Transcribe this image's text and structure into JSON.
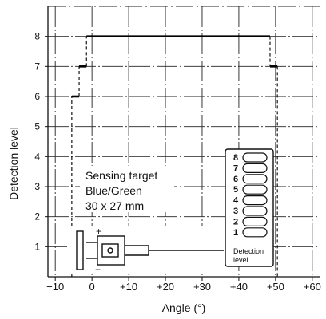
{
  "chart_data": {
    "type": "line",
    "xlabel": "Angle (°)",
    "ylabel": "Detection level",
    "xlim": [
      -12,
      62
    ],
    "ylim": [
      0,
      9
    ],
    "x_ticks": [
      -10,
      0,
      10,
      20,
      30,
      40,
      50,
      60
    ],
    "x_tick_labels": [
      "−10",
      "0",
      "+10",
      "+20",
      "+30",
      "+40",
      "+50",
      "+60"
    ],
    "y_ticks": [
      1,
      2,
      3,
      4,
      5,
      6,
      7,
      8
    ],
    "y_tick_labels": [
      "1",
      "2",
      "3",
      "4",
      "5",
      "6",
      "7",
      "8"
    ],
    "grid": true,
    "series": [
      {
        "step_points": [
          [
            -5.5,
            0
          ],
          [
            -5.5,
            6
          ],
          [
            -3.5,
            6
          ],
          [
            -3.5,
            7
          ],
          [
            -1.5,
            7
          ],
          [
            -1.5,
            8
          ],
          [
            48.5,
            8
          ],
          [
            48.5,
            7
          ],
          [
            50.5,
            7
          ],
          [
            50.5,
            0
          ]
        ]
      }
    ],
    "annotation": {
      "lines": [
        "Sensing target",
        "Blue/Green",
        "30 x 27 mm"
      ]
    },
    "indicator": {
      "levels": [
        "8",
        "7",
        "6",
        "5",
        "4",
        "3",
        "2",
        "1"
      ],
      "caption_lines": [
        "Detection",
        "level"
      ]
    },
    "diagram_labels": {
      "plus": "+",
      "minus": "−"
    }
  }
}
